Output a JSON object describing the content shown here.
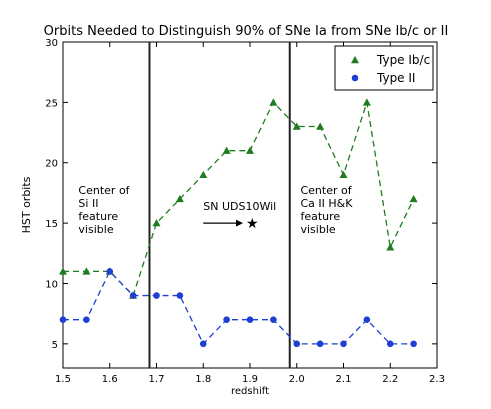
{
  "chart_data": {
    "type": "line",
    "title": "Orbits Needed to Distinguish 90% of SNe Ia from SNe Ib/c or II",
    "xlabel": "redshift",
    "ylabel": "HST orbits",
    "xlim": [
      1.5,
      2.3
    ],
    "ylim": [
      3,
      30
    ],
    "xticks": [
      1.5,
      1.6,
      1.7,
      1.8,
      1.9,
      2.0,
      2.1,
      2.2,
      2.3
    ],
    "yticks": [
      5,
      10,
      15,
      20,
      25,
      30
    ],
    "grid": false,
    "legend_position": "top-right",
    "x": [
      1.5,
      1.55,
      1.6,
      1.65,
      1.7,
      1.75,
      1.8,
      1.85,
      1.9,
      1.95,
      2.0,
      2.05,
      2.1,
      2.15,
      2.2,
      2.25
    ],
    "series": [
      {
        "name": "Type Ib/c",
        "marker": "triangle",
        "color": "#1e7b1e",
        "values": [
          11,
          11,
          11,
          9,
          15,
          17,
          19,
          21,
          21,
          25,
          23,
          23,
          19,
          25,
          13,
          17
        ]
      },
      {
        "name": "Type II",
        "marker": "circle",
        "color": "#1f3fd4",
        "values": [
          7,
          7,
          11,
          9,
          9,
          9,
          5,
          7,
          7,
          7,
          5,
          5,
          5,
          7,
          5,
          5
        ]
      }
    ],
    "vertical_lines": [
      1.685,
      1.985
    ],
    "annotations": [
      {
        "lines": [
          "Center of",
          "Si II",
          "feature",
          "visible"
        ],
        "x": 1.533,
        "y": 17.4
      },
      {
        "lines": [
          "Center of",
          "Ca II H&K",
          "feature",
          "visible"
        ],
        "x": 2.008,
        "y": 17.4
      }
    ],
    "sn_marker": {
      "label": "SN UDS10Wil",
      "x": 1.905,
      "y": 15.0,
      "label_x": 1.8,
      "label_y": 16.1,
      "arrow_from_x": 1.8,
      "arrow_to_x": 1.885
    }
  }
}
